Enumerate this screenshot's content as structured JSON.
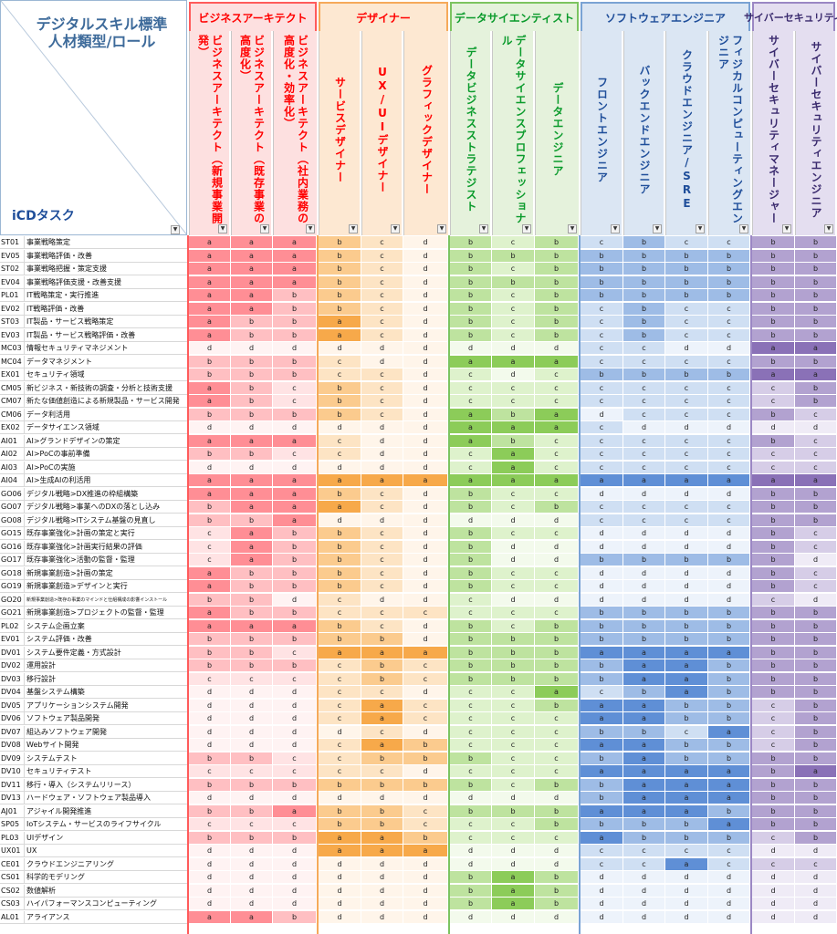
{
  "corner": {
    "title_line1": "デジタルスキル標準",
    "title_line2": "人材類型/ロール",
    "row_label": "iCDタスク"
  },
  "groups": [
    {
      "name": "ビジネスアーキテクト",
      "color": "#ff0000",
      "fill": "#fde0e0",
      "border": "#ff5b5b",
      "levels": {
        "a": "#ff8e95",
        "b": "#ffbfc2",
        "c": "#ffe3e4",
        "d": "#fff3f3"
      }
    },
    {
      "name": "デザイナー",
      "color": "#ff0000",
      "fill": "#fde8d2",
      "border": "#f6a95a",
      "levels": {
        "a": "#f7a94a",
        "b": "#fbcb8e",
        "c": "#fde4c4",
        "d": "#fff5ea"
      }
    },
    {
      "name": "データサイエンティスト",
      "color": "#0b9b2c",
      "fill": "#e5f2dc",
      "border": "#7cc460",
      "levels": {
        "a": "#8ccc59",
        "b": "#bee39f",
        "c": "#def2cc",
        "d": "#f3faec"
      }
    },
    {
      "name": "ソフトウェアエンジニア",
      "color": "#1f4e9a",
      "fill": "#dbe6f3",
      "border": "#7aa3d4",
      "levels": {
        "a": "#5f8fd6",
        "b": "#9ebce6",
        "c": "#cfdff3",
        "d": "#edf3fb"
      }
    },
    {
      "name": "サイバーセキュリティ",
      "color": "#3a2a6e",
      "fill": "#e4def0",
      "border": "#9b87c4",
      "levels": {
        "a": "#8a71b7",
        "b": "#b2a2d0",
        "c": "#d6cde7",
        "d": "#efebf6"
      }
    }
  ],
  "roles": [
    {
      "name": "ビジネスアーキテクト（新規事業開発）",
      "group": 0
    },
    {
      "name": "ビジネスアーキテクト（既存事業の高度化）",
      "group": 0
    },
    {
      "name": "ビジネスアーキテクト（社内業務の高度化・効率化）",
      "group": 0
    },
    {
      "name": "サービスデザイナー",
      "group": 1
    },
    {
      "name": "UX/UIデザイナー",
      "group": 1
    },
    {
      "name": "グラフィックデザイナー",
      "group": 1
    },
    {
      "name": "データビジネスストラテジスト",
      "group": 2
    },
    {
      "name": "データサイエンスプロフェッショナル",
      "group": 2
    },
    {
      "name": "データエンジニア",
      "group": 2
    },
    {
      "name": "フロントエンジニア",
      "group": 3
    },
    {
      "name": "バックエンドエンジニア",
      "group": 3
    },
    {
      "name": "クラウドエンジニア/SRE",
      "group": 3
    },
    {
      "name": "フィジカルコンピューティングエンジニア",
      "group": 3
    },
    {
      "name": "サイバーセキュリティマネージャー",
      "group": 4
    },
    {
      "name": "サイバーセキュリティエンジニア",
      "group": 4
    }
  ],
  "tasks": [
    {
      "code": "ST01",
      "name": "事業戦略策定",
      "levels": [
        "a",
        "a",
        "a",
        "b",
        "c",
        "d",
        "b",
        "c",
        "b",
        "c",
        "b",
        "c",
        "c",
        "b",
        "b"
      ]
    },
    {
      "code": "EV05",
      "name": "事業戦略評価・改善",
      "levels": [
        "a",
        "a",
        "a",
        "b",
        "c",
        "d",
        "b",
        "b",
        "b",
        "b",
        "b",
        "b",
        "b",
        "b",
        "b"
      ]
    },
    {
      "code": "ST02",
      "name": "事業戦略把握・策定支援",
      "levels": [
        "a",
        "a",
        "a",
        "b",
        "c",
        "d",
        "b",
        "c",
        "b",
        "b",
        "b",
        "b",
        "b",
        "b",
        "b"
      ]
    },
    {
      "code": "EV04",
      "name": "事業戦略評価支援・改善支援",
      "levels": [
        "a",
        "a",
        "a",
        "b",
        "c",
        "d",
        "b",
        "b",
        "b",
        "b",
        "b",
        "b",
        "b",
        "b",
        "b"
      ]
    },
    {
      "code": "PL01",
      "name": "IT戦略策定・実行推進",
      "levels": [
        "a",
        "a",
        "b",
        "b",
        "c",
        "d",
        "b",
        "c",
        "b",
        "b",
        "b",
        "b",
        "b",
        "b",
        "b"
      ]
    },
    {
      "code": "EV02",
      "name": "IT戦略評価・改善",
      "levels": [
        "a",
        "a",
        "b",
        "b",
        "c",
        "d",
        "b",
        "c",
        "b",
        "c",
        "b",
        "c",
        "c",
        "b",
        "b"
      ]
    },
    {
      "code": "ST03",
      "name": "IT製品・サービス戦略策定",
      "levels": [
        "a",
        "b",
        "b",
        "a",
        "c",
        "d",
        "b",
        "c",
        "b",
        "c",
        "b",
        "c",
        "c",
        "b",
        "b"
      ]
    },
    {
      "code": "EV03",
      "name": "IT製品・サービス戦略評価・改善",
      "levels": [
        "a",
        "b",
        "b",
        "a",
        "c",
        "d",
        "b",
        "c",
        "b",
        "c",
        "b",
        "c",
        "c",
        "b",
        "b"
      ]
    },
    {
      "code": "MC03",
      "name": "情報セキュリティマネジメント",
      "levels": [
        "d",
        "d",
        "d",
        "d",
        "d",
        "d",
        "d",
        "d",
        "d",
        "c",
        "c",
        "d",
        "d",
        "a",
        "a"
      ]
    },
    {
      "code": "MC04",
      "name": "データマネジメント",
      "levels": [
        "b",
        "b",
        "b",
        "c",
        "d",
        "d",
        "a",
        "a",
        "a",
        "c",
        "c",
        "c",
        "c",
        "b",
        "b"
      ]
    },
    {
      "code": "EX01",
      "name": "セキュリティ領域",
      "levels": [
        "b",
        "b",
        "b",
        "c",
        "c",
        "d",
        "c",
        "d",
        "c",
        "b",
        "b",
        "b",
        "b",
        "a",
        "a"
      ]
    },
    {
      "code": "CM05",
      "name": "新ビジネス・新技術の調査・分析と技術支援",
      "levels": [
        "a",
        "b",
        "c",
        "b",
        "c",
        "d",
        "c",
        "c",
        "c",
        "c",
        "c",
        "c",
        "c",
        "c",
        "b"
      ]
    },
    {
      "code": "CM07",
      "name": "新たな価値創造による新規製品・サービス開発",
      "levels": [
        "a",
        "b",
        "c",
        "b",
        "c",
        "d",
        "c",
        "c",
        "c",
        "c",
        "c",
        "c",
        "c",
        "c",
        "b"
      ]
    },
    {
      "code": "CM06",
      "name": "データ利活用",
      "levels": [
        "b",
        "b",
        "b",
        "b",
        "c",
        "d",
        "a",
        "b",
        "a",
        "d",
        "c",
        "c",
        "c",
        "b",
        "c"
      ]
    },
    {
      "code": "EX02",
      "name": "データサイエンス領域",
      "levels": [
        "d",
        "d",
        "d",
        "d",
        "d",
        "d",
        "a",
        "a",
        "a",
        "c",
        "d",
        "d",
        "d",
        "d",
        "d"
      ]
    },
    {
      "code": "AI01",
      "name": "AI>グランドデザインの策定",
      "levels": [
        "a",
        "a",
        "a",
        "c",
        "d",
        "d",
        "a",
        "b",
        "c",
        "c",
        "c",
        "c",
        "c",
        "b",
        "c"
      ]
    },
    {
      "code": "AI02",
      "name": "AI>PoCの事前準備",
      "levels": [
        "b",
        "b",
        "c",
        "c",
        "d",
        "d",
        "c",
        "a",
        "c",
        "c",
        "c",
        "c",
        "c",
        "c",
        "c"
      ]
    },
    {
      "code": "AI03",
      "name": "AI>PoCの実施",
      "levels": [
        "d",
        "d",
        "d",
        "d",
        "d",
        "d",
        "c",
        "a",
        "c",
        "c",
        "c",
        "c",
        "c",
        "c",
        "c"
      ]
    },
    {
      "code": "AI04",
      "name": "AI>生成AIの利活用",
      "levels": [
        "a",
        "a",
        "a",
        "a",
        "a",
        "a",
        "a",
        "a",
        "a",
        "a",
        "a",
        "a",
        "a",
        "a",
        "a"
      ]
    },
    {
      "code": "GO06",
      "name": "デジタル戦略>DX推進の枠組構築",
      "levels": [
        "a",
        "a",
        "a",
        "b",
        "c",
        "d",
        "b",
        "c",
        "c",
        "d",
        "d",
        "d",
        "d",
        "b",
        "b"
      ]
    },
    {
      "code": "GO07",
      "name": "デジタル戦略>事業へのDXの落とし込み",
      "levels": [
        "b",
        "a",
        "a",
        "a",
        "c",
        "d",
        "b",
        "c",
        "b",
        "c",
        "c",
        "c",
        "c",
        "b",
        "b"
      ]
    },
    {
      "code": "GO08",
      "name": "デジタル戦略>ITシステム基盤の見直し",
      "levels": [
        "b",
        "b",
        "a",
        "d",
        "d",
        "d",
        "d",
        "d",
        "d",
        "c",
        "c",
        "c",
        "c",
        "b",
        "b"
      ]
    },
    {
      "code": "GO15",
      "name": "既存事業強化>計画の策定と実行",
      "levels": [
        "c",
        "a",
        "b",
        "b",
        "c",
        "d",
        "b",
        "c",
        "c",
        "d",
        "d",
        "d",
        "d",
        "b",
        "c"
      ]
    },
    {
      "code": "GO16",
      "name": "既存事業強化>計画実行結果の評価",
      "levels": [
        "c",
        "a",
        "b",
        "b",
        "c",
        "d",
        "b",
        "d",
        "d",
        "d",
        "d",
        "d",
        "d",
        "b",
        "c"
      ]
    },
    {
      "code": "GO17",
      "name": "既存事業強化>活動の監督・監理",
      "levels": [
        "c",
        "a",
        "b",
        "b",
        "c",
        "d",
        "b",
        "d",
        "d",
        "b",
        "b",
        "b",
        "b",
        "b",
        "d"
      ]
    },
    {
      "code": "GO18",
      "name": "新規事業創造>計画の策定",
      "levels": [
        "a",
        "b",
        "b",
        "b",
        "c",
        "d",
        "b",
        "c",
        "c",
        "d",
        "d",
        "d",
        "d",
        "b",
        "c"
      ]
    },
    {
      "code": "GO19",
      "name": "新規事業創造>デザインと実行",
      "levels": [
        "a",
        "b",
        "b",
        "b",
        "c",
        "d",
        "b",
        "c",
        "c",
        "d",
        "d",
        "d",
        "d",
        "b",
        "c"
      ]
    },
    {
      "code": "GO20",
      "name": "新規事業創造>既存の事業のマインドと仕組構成の影響インストール",
      "levels": [
        "b",
        "b",
        "d",
        "c",
        "d",
        "d",
        "c",
        "d",
        "d",
        "d",
        "d",
        "d",
        "d",
        "c",
        "d"
      ]
    },
    {
      "code": "GO21",
      "name": "新規事業創造>プロジェクトの監督・監理",
      "levels": [
        "a",
        "b",
        "b",
        "c",
        "c",
        "c",
        "c",
        "c",
        "c",
        "b",
        "b",
        "b",
        "b",
        "b",
        "b"
      ]
    },
    {
      "code": "PL02",
      "name": "システム企画立案",
      "levels": [
        "a",
        "a",
        "a",
        "b",
        "c",
        "d",
        "b",
        "c",
        "b",
        "b",
        "b",
        "b",
        "b",
        "b",
        "b"
      ]
    },
    {
      "code": "EV01",
      "name": "システム評価・改善",
      "levels": [
        "b",
        "b",
        "b",
        "b",
        "b",
        "d",
        "b",
        "b",
        "b",
        "b",
        "b",
        "b",
        "b",
        "b",
        "b"
      ]
    },
    {
      "code": "DV01",
      "name": "システム要件定義・方式設計",
      "levels": [
        "b",
        "b",
        "c",
        "a",
        "a",
        "a",
        "b",
        "b",
        "b",
        "a",
        "a",
        "a",
        "a",
        "b",
        "b"
      ]
    },
    {
      "code": "DV02",
      "name": "運用設計",
      "levels": [
        "b",
        "b",
        "b",
        "c",
        "b",
        "c",
        "b",
        "b",
        "b",
        "b",
        "a",
        "a",
        "b",
        "b",
        "b"
      ]
    },
    {
      "code": "DV03",
      "name": "移行設計",
      "levels": [
        "c",
        "c",
        "c",
        "c",
        "b",
        "c",
        "b",
        "b",
        "b",
        "b",
        "a",
        "a",
        "b",
        "b",
        "b"
      ]
    },
    {
      "code": "DV04",
      "name": "基盤システム構築",
      "levels": [
        "d",
        "d",
        "d",
        "c",
        "c",
        "d",
        "c",
        "c",
        "a",
        "c",
        "b",
        "a",
        "b",
        "b",
        "b"
      ]
    },
    {
      "code": "DV05",
      "name": "アプリケーションシステム開発",
      "levels": [
        "d",
        "d",
        "d",
        "c",
        "a",
        "c",
        "c",
        "c",
        "b",
        "a",
        "a",
        "b",
        "b",
        "c",
        "b"
      ]
    },
    {
      "code": "DV06",
      "name": "ソフトウェア製品開発",
      "levels": [
        "d",
        "d",
        "d",
        "c",
        "a",
        "c",
        "c",
        "c",
        "c",
        "a",
        "a",
        "b",
        "b",
        "c",
        "b"
      ]
    },
    {
      "code": "DV07",
      "name": "組込みソフトウェア開発",
      "levels": [
        "d",
        "d",
        "d",
        "d",
        "c",
        "d",
        "c",
        "c",
        "c",
        "b",
        "b",
        "c",
        "a",
        "c",
        "b"
      ]
    },
    {
      "code": "DV08",
      "name": "Webサイト開発",
      "levels": [
        "d",
        "d",
        "d",
        "c",
        "a",
        "b",
        "c",
        "c",
        "c",
        "a",
        "a",
        "b",
        "b",
        "c",
        "b"
      ]
    },
    {
      "code": "DV09",
      "name": "システムテスト",
      "levels": [
        "b",
        "b",
        "c",
        "c",
        "b",
        "b",
        "b",
        "c",
        "c",
        "b",
        "a",
        "b",
        "b",
        "b",
        "b"
      ]
    },
    {
      "code": "DV10",
      "name": "セキュリティテスト",
      "levels": [
        "c",
        "c",
        "c",
        "c",
        "c",
        "d",
        "c",
        "c",
        "c",
        "a",
        "a",
        "a",
        "a",
        "b",
        "a"
      ]
    },
    {
      "code": "DV11",
      "name": "移行・導入（システムリリース）",
      "levels": [
        "b",
        "b",
        "b",
        "b",
        "b",
        "b",
        "b",
        "c",
        "b",
        "b",
        "a",
        "a",
        "a",
        "b",
        "b"
      ]
    },
    {
      "code": "DV13",
      "name": "ハードウェア・ソフトウェア製品導入",
      "levels": [
        "d",
        "d",
        "d",
        "d",
        "d",
        "d",
        "d",
        "d",
        "d",
        "b",
        "a",
        "a",
        "a",
        "b",
        "b"
      ]
    },
    {
      "code": "AJ01",
      "name": "アジャイル開発推進",
      "levels": [
        "b",
        "b",
        "a",
        "b",
        "b",
        "c",
        "b",
        "b",
        "b",
        "a",
        "a",
        "a",
        "b",
        "b",
        "b"
      ]
    },
    {
      "code": "SP05",
      "name": "IoTシステム・サービスのライフサイクル",
      "levels": [
        "c",
        "c",
        "c",
        "b",
        "b",
        "c",
        "c",
        "c",
        "b",
        "b",
        "b",
        "b",
        "a",
        "b",
        "b"
      ]
    },
    {
      "code": "PL03",
      "name": "UIデザイン",
      "levels": [
        "b",
        "b",
        "b",
        "a",
        "a",
        "b",
        "c",
        "c",
        "c",
        "a",
        "b",
        "b",
        "b",
        "c",
        "b"
      ]
    },
    {
      "code": "UX01",
      "name": "UX",
      "levels": [
        "d",
        "d",
        "d",
        "a",
        "a",
        "a",
        "d",
        "d",
        "d",
        "c",
        "c",
        "c",
        "c",
        "d",
        "d"
      ]
    },
    {
      "code": "CE01",
      "name": "クラウドエンジニアリング",
      "levels": [
        "d",
        "d",
        "d",
        "d",
        "d",
        "d",
        "d",
        "d",
        "d",
        "c",
        "c",
        "a",
        "c",
        "c",
        "c"
      ]
    },
    {
      "code": "CS01",
      "name": "科学的モデリング",
      "levels": [
        "d",
        "d",
        "d",
        "d",
        "d",
        "d",
        "b",
        "a",
        "b",
        "d",
        "d",
        "d",
        "d",
        "d",
        "d"
      ]
    },
    {
      "code": "CS02",
      "name": "数値解析",
      "levels": [
        "d",
        "d",
        "d",
        "d",
        "d",
        "d",
        "b",
        "a",
        "b",
        "d",
        "d",
        "d",
        "d",
        "d",
        "d"
      ]
    },
    {
      "code": "CS03",
      "name": "ハイパフォーマンスコンピューティング",
      "levels": [
        "d",
        "d",
        "d",
        "d",
        "d",
        "d",
        "b",
        "a",
        "b",
        "d",
        "d",
        "d",
        "d",
        "d",
        "d"
      ]
    },
    {
      "code": "AL01",
      "name": "アライアンス",
      "levels": [
        "a",
        "a",
        "b",
        "d",
        "d",
        "d",
        "d",
        "d",
        "d",
        "d",
        "d",
        "d",
        "d",
        "d",
        "d"
      ]
    }
  ]
}
